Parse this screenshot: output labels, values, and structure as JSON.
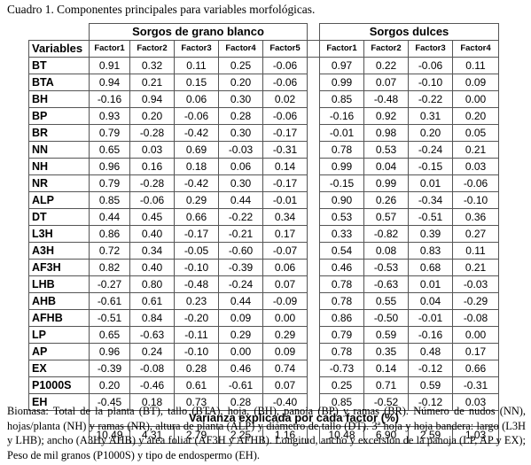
{
  "caption": "Cuadro 1. Componentes principales para variables morfológicas.",
  "table": {
    "group_white": "Sorgos de grano blanco",
    "group_sweet": "Sorgos dulces",
    "variables_header": "Variables",
    "white_factors": [
      "Factor1",
      "Factor2",
      "Factor3",
      "Factor4",
      "Factor5"
    ],
    "sweet_factors": [
      "Factor1",
      "Factor2",
      "Factor3",
      "Factor4"
    ],
    "rows": [
      {
        "var": "BT",
        "white": [
          "0.91",
          "0.32",
          "0.11",
          "0.25",
          "-0.06"
        ],
        "sweet": [
          "0.97",
          "0.22",
          "-0.06",
          "0.11"
        ]
      },
      {
        "var": "BTA",
        "white": [
          "0.94",
          "0.21",
          "0.15",
          "0.20",
          "-0.06"
        ],
        "sweet": [
          "0.99",
          "0.07",
          "-0.10",
          "0.09"
        ]
      },
      {
        "var": "BH",
        "white": [
          "-0.16",
          "0.94",
          "0.06",
          "0.30",
          "0.02"
        ],
        "sweet": [
          "0.85",
          "-0.48",
          "-0.22",
          "0.00"
        ]
      },
      {
        "var": "BP",
        "white": [
          "0.93",
          "0.20",
          "-0.06",
          "0.28",
          "-0.06"
        ],
        "sweet": [
          "-0.16",
          "0.92",
          "0.31",
          "0.20"
        ]
      },
      {
        "var": "BR",
        "white": [
          "0.79",
          "-0.28",
          "-0.42",
          "0.30",
          "-0.17"
        ],
        "sweet": [
          "-0.01",
          "0.98",
          "0.20",
          "0.05"
        ]
      },
      {
        "var": "NN",
        "white": [
          "0.65",
          "0.03",
          "0.69",
          "-0.03",
          "-0.31"
        ],
        "sweet": [
          "0.78",
          "0.53",
          "-0.24",
          "0.21"
        ]
      },
      {
        "var": "NH",
        "white": [
          "0.96",
          "0.16",
          "0.18",
          "0.06",
          "0.14"
        ],
        "sweet": [
          "0.99",
          "0.04",
          "-0.15",
          "0.03"
        ]
      },
      {
        "var": "NR",
        "white": [
          "0.79",
          "-0.28",
          "-0.42",
          "0.30",
          "-0.17"
        ],
        "sweet": [
          "-0.15",
          "0.99",
          "0.01",
          "-0.06"
        ]
      },
      {
        "var": "ALP",
        "white": [
          "0.85",
          "-0.06",
          "0.29",
          "0.44",
          "-0.01"
        ],
        "sweet": [
          "0.90",
          "0.26",
          "-0.34",
          "-0.10"
        ]
      },
      {
        "var": "DT",
        "white": [
          "0.44",
          "0.45",
          "0.66",
          "-0.22",
          "0.34"
        ],
        "sweet": [
          "0.53",
          "0.57",
          "-0.51",
          "0.36"
        ]
      },
      {
        "var": "L3H",
        "white": [
          "0.86",
          "0.40",
          "-0.17",
          "-0.21",
          "0.17"
        ],
        "sweet": [
          "0.33",
          "-0.82",
          "0.39",
          "0.27"
        ]
      },
      {
        "var": "A3H",
        "white": [
          "0.72",
          "0.34",
          "-0.05",
          "-0.60",
          "-0.07"
        ],
        "sweet": [
          "0.54",
          "0.08",
          "0.83",
          "0.11"
        ]
      },
      {
        "var": "AF3H",
        "white": [
          "0.82",
          "0.40",
          "-0.10",
          "-0.39",
          "0.06"
        ],
        "sweet": [
          "0.46",
          "-0.53",
          "0.68",
          "0.21"
        ]
      },
      {
        "var": "LHB",
        "white": [
          "-0.27",
          "0.80",
          "-0.48",
          "-0.24",
          "0.07"
        ],
        "sweet": [
          "0.78",
          "-0.63",
          "0.01",
          "-0.03"
        ]
      },
      {
        "var": "AHB",
        "white": [
          "-0.61",
          "0.61",
          "0.23",
          "0.44",
          "-0.09"
        ],
        "sweet": [
          "0.78",
          "0.55",
          "0.04",
          "-0.29"
        ]
      },
      {
        "var": "AFHB",
        "white": [
          "-0.51",
          "0.84",
          "-0.20",
          "0.09",
          "0.00"
        ],
        "sweet": [
          "0.86",
          "-0.50",
          "-0.01",
          "-0.08"
        ]
      },
      {
        "var": "LP",
        "white": [
          "0.65",
          "-0.63",
          "-0.11",
          "0.29",
          "0.29"
        ],
        "sweet": [
          "0.79",
          "0.59",
          "-0.16",
          "0.00"
        ]
      },
      {
        "var": "AP",
        "white": [
          "0.96",
          "0.24",
          "-0.10",
          "0.00",
          "0.09"
        ],
        "sweet": [
          "0.78",
          "0.35",
          "0.48",
          "0.17"
        ]
      },
      {
        "var": "EX",
        "white": [
          "-0.39",
          "-0.08",
          "0.28",
          "0.46",
          "0.74"
        ],
        "sweet": [
          "-0.73",
          "0.14",
          "-0.12",
          "0.66"
        ]
      },
      {
        "var": "P1000S",
        "white": [
          "0.20",
          "-0.46",
          "0.61",
          "-0.61",
          "0.07"
        ],
        "sweet": [
          "0.25",
          "0.71",
          "0.59",
          "-0.31"
        ]
      },
      {
        "var": "EH",
        "white": [
          "-0.45",
          "0.18",
          "0.73",
          "0.28",
          "-0.40"
        ],
        "sweet": [
          "0.85",
          "-0.52",
          "-0.12",
          "0.03"
        ]
      }
    ],
    "variance_header": "Varianza explicada por cada factor (%)",
    "variance_white": [
      "10.49",
      "4.31",
      "2.79",
      "2.25",
      "1.16"
    ],
    "variance_sweet": [
      "10.48",
      "6.90",
      "2.59",
      "1.03"
    ]
  },
  "footnote": "Biomasa: Total de la planta (BT), tallo (BTA), hoja, (BH), panoja (BP) y ramas (BR). Número de nudos (NN), hojas/planta (NH) y ramas (NR), altura de planta (ALP) y diámetro de tallo (DT). 3ª hoja y hoja bandera: largo (L3H y LHB); ancho (A3Hy AHB) y área foliar (AF3H y AFHB). Longitud, ancho y excersión de la panoja (LP, AP y EX); Peso de mil granos (P1000S) y tipo de endospermo (EH)."
}
